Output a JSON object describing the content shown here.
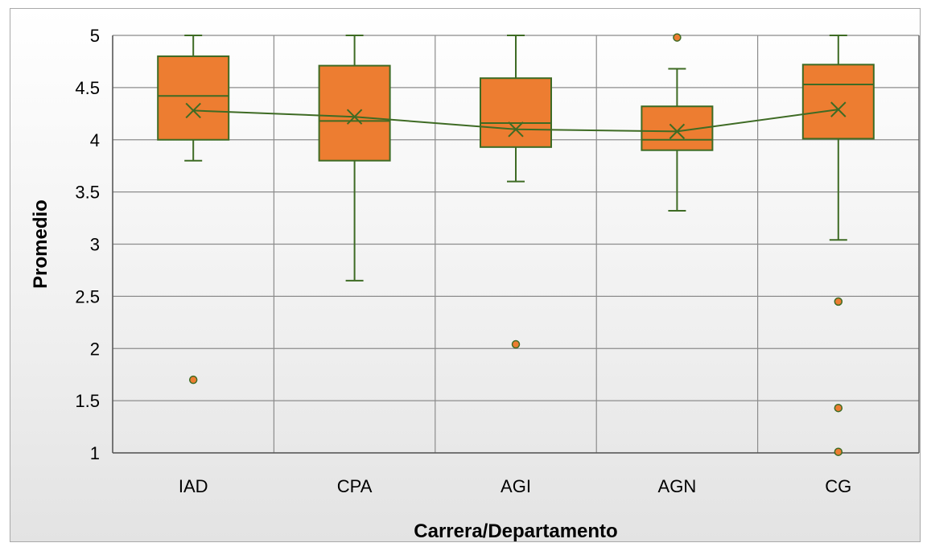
{
  "chart_data": {
    "type": "boxplot",
    "title": "",
    "xlabel": "Carrera/Departamento",
    "ylabel": "Promedio",
    "ylim": [
      1,
      5
    ],
    "yticks": [
      1,
      1.5,
      2,
      2.5,
      3,
      3.5,
      4,
      4.5,
      5
    ],
    "grid": true,
    "legend": "none",
    "categories": [
      "IAD",
      "CPA",
      "AGI",
      "AGN",
      "CG"
    ],
    "boxes": [
      {
        "category": "IAD",
        "whisker_low": 3.8,
        "q1": 4.0,
        "median": 4.42,
        "q3": 4.8,
        "whisker_high": 5.0,
        "mean": 4.28,
        "outliers": [
          1.7
        ]
      },
      {
        "category": "CPA",
        "whisker_low": 2.65,
        "q1": 3.8,
        "median": 4.18,
        "q3": 4.71,
        "whisker_high": 5.0,
        "mean": 4.22,
        "outliers": []
      },
      {
        "category": "AGI",
        "whisker_low": 3.6,
        "q1": 3.93,
        "median": 4.16,
        "q3": 4.59,
        "whisker_high": 5.0,
        "mean": 4.1,
        "outliers": [
          2.04
        ]
      },
      {
        "category": "AGN",
        "whisker_low": 3.32,
        "q1": 3.9,
        "median": 4.0,
        "q3": 4.32,
        "whisker_high": 4.68,
        "mean": 4.08,
        "outliers": [
          4.98
        ]
      },
      {
        "category": "CG",
        "whisker_low": 3.04,
        "q1": 4.01,
        "median": 4.53,
        "q3": 4.72,
        "whisker_high": 5.0,
        "mean": 4.29,
        "outliers": [
          2.45,
          1.43,
          1.01
        ]
      }
    ],
    "colors": {
      "box_fill": "#ed7d31",
      "line": "#3e6b24",
      "grid": "#8c8c8c"
    }
  }
}
